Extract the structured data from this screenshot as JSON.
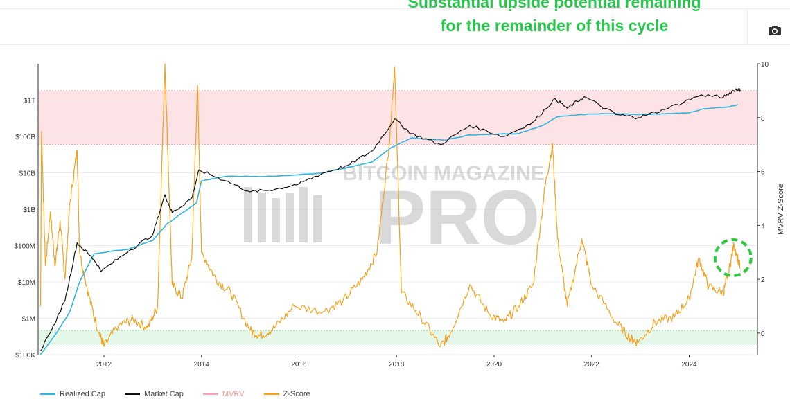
{
  "headline": {
    "line1": "Substantial upside potential remaining",
    "line2": "for the remainder of this cycle"
  },
  "toolbar": {
    "camera_icon": "camera-icon"
  },
  "colors": {
    "headline": "#26c74a",
    "realized_cap": "#2fb4e0",
    "market_cap": "#111111",
    "mvrv": "#f3a3ac",
    "zscore": "#f5a01a",
    "red_zone": "#fde3e5",
    "green_zone": "#e4f7e8",
    "annotation": "#2ec73e"
  },
  "watermark": {
    "line1": "BITCOIN MAGAZINE",
    "line2": "PRO"
  },
  "chart_data": {
    "type": "line",
    "x_range": [
      2010.65,
      2025.4
    ],
    "x_ticks": [
      "2012",
      "2014",
      "2016",
      "2018",
      "2020",
      "2022",
      "2024"
    ],
    "left_axis": {
      "scale": "log",
      "range": [
        100000,
        10000000000000
      ],
      "tick_values": [
        100000,
        1000000,
        10000000,
        100000000,
        1000000000,
        10000000000,
        100000000000,
        1000000000000
      ],
      "tick_labels": [
        "$100K",
        "$1M",
        "$10M",
        "$100M",
        "$1B",
        "$10B",
        "$100B",
        "$1T"
      ]
    },
    "right_axis": {
      "label": "MVRV Z-Score",
      "range": [
        -0.8,
        10
      ],
      "tick_values": [
        0,
        2,
        4,
        6,
        8,
        10
      ],
      "tick_labels": [
        "0",
        "2",
        "4",
        "6",
        "8",
        "10"
      ]
    },
    "bands": [
      {
        "name": "red-zone",
        "axis": "right",
        "from": 7,
        "to": 9
      },
      {
        "name": "green-zone",
        "axis": "right",
        "from": -0.4,
        "to": 0.1
      }
    ],
    "series": [
      {
        "name": "Realized Cap",
        "axis": "left",
        "points": [
          [
            2010.7,
            100000
          ],
          [
            2011.0,
            350000
          ],
          [
            2011.3,
            1500000
          ],
          [
            2011.5,
            10000000
          ],
          [
            2011.8,
            60000000
          ],
          [
            2012.5,
            80000000
          ],
          [
            2013.0,
            140000000
          ],
          [
            2013.3,
            400000000
          ],
          [
            2013.9,
            1500000000
          ],
          [
            2014.0,
            6000000000
          ],
          [
            2014.5,
            8000000000
          ],
          [
            2015.5,
            8000000000
          ],
          [
            2016.5,
            10000000000
          ],
          [
            2017.5,
            20000000000
          ],
          [
            2017.9,
            50000000000
          ],
          [
            2018.3,
            90000000000
          ],
          [
            2019.0,
            80000000000
          ],
          [
            2019.5,
            110000000000
          ],
          [
            2020.5,
            120000000000
          ],
          [
            2021.0,
            200000000000
          ],
          [
            2021.3,
            350000000000
          ],
          [
            2022.0,
            420000000000
          ],
          [
            2022.5,
            420000000000
          ],
          [
            2023.0,
            400000000000
          ],
          [
            2023.5,
            420000000000
          ],
          [
            2024.0,
            450000000000
          ],
          [
            2024.3,
            580000000000
          ],
          [
            2024.8,
            650000000000
          ],
          [
            2025.0,
            750000000000
          ]
        ]
      },
      {
        "name": "Market Cap",
        "axis": "left",
        "points": [
          [
            2010.7,
            130000
          ],
          [
            2010.9,
            400000
          ],
          [
            2011.2,
            3000000
          ],
          [
            2011.45,
            120000000
          ],
          [
            2011.8,
            40000000
          ],
          [
            2011.95,
            20000000
          ],
          [
            2012.5,
            70000000
          ],
          [
            2013.0,
            200000000
          ],
          [
            2013.25,
            2500000000
          ],
          [
            2013.4,
            800000000
          ],
          [
            2013.8,
            2000000000
          ],
          [
            2013.95,
            12000000000
          ],
          [
            2014.5,
            6000000000
          ],
          [
            2015.0,
            3000000000
          ],
          [
            2015.5,
            3500000000
          ],
          [
            2016.0,
            5000000000
          ],
          [
            2016.5,
            10000000000
          ],
          [
            2017.0,
            16000000000
          ],
          [
            2017.5,
            40000000000
          ],
          [
            2017.96,
            300000000000
          ],
          [
            2018.3,
            120000000000
          ],
          [
            2018.9,
            60000000000
          ],
          [
            2019.5,
            200000000000
          ],
          [
            2020.2,
            100000000000
          ],
          [
            2020.8,
            250000000000
          ],
          [
            2021.25,
            1100000000000
          ],
          [
            2021.5,
            600000000000
          ],
          [
            2021.85,
            1250000000000
          ],
          [
            2022.5,
            400000000000
          ],
          [
            2022.95,
            330000000000
          ],
          [
            2023.5,
            550000000000
          ],
          [
            2024.25,
            1400000000000
          ],
          [
            2024.7,
            1200000000000
          ],
          [
            2024.95,
            2000000000000
          ],
          [
            2025.05,
            1900000000000
          ]
        ]
      },
      {
        "name": "MVRV",
        "axis": "left",
        "points": []
      },
      {
        "name": "Z-Score",
        "axis": "right",
        "points": [
          [
            2010.7,
            1.0
          ],
          [
            2010.72,
            7.5
          ],
          [
            2010.8,
            2.5
          ],
          [
            2010.9,
            4.5
          ],
          [
            2011.0,
            2.5
          ],
          [
            2011.1,
            4.2
          ],
          [
            2011.2,
            2.0
          ],
          [
            2011.3,
            4.8
          ],
          [
            2011.45,
            6.8
          ],
          [
            2011.5,
            3.0
          ],
          [
            2011.7,
            1.3
          ],
          [
            2011.9,
            0.0
          ],
          [
            2012.0,
            -0.5
          ],
          [
            2012.3,
            0.3
          ],
          [
            2012.6,
            0.5
          ],
          [
            2012.9,
            0.2
          ],
          [
            2013.1,
            1.0
          ],
          [
            2013.25,
            10.0
          ],
          [
            2013.4,
            1.8
          ],
          [
            2013.6,
            1.3
          ],
          [
            2013.8,
            2.8
          ],
          [
            2013.92,
            9.2
          ],
          [
            2014.0,
            3.0
          ],
          [
            2014.3,
            2.0
          ],
          [
            2014.6,
            1.5
          ],
          [
            2015.0,
            0.1
          ],
          [
            2015.2,
            -0.1
          ],
          [
            2015.5,
            0.2
          ],
          [
            2015.9,
            1.0
          ],
          [
            2016.5,
            0.8
          ],
          [
            2016.9,
            1.2
          ],
          [
            2017.3,
            2.0
          ],
          [
            2017.6,
            3.0
          ],
          [
            2017.85,
            7.0
          ],
          [
            2017.96,
            9.9
          ],
          [
            2018.1,
            1.5
          ],
          [
            2018.5,
            0.6
          ],
          [
            2018.9,
            -0.5
          ],
          [
            2019.1,
            0.0
          ],
          [
            2019.5,
            1.8
          ],
          [
            2019.9,
            0.7
          ],
          [
            2020.2,
            0.4
          ],
          [
            2020.5,
            1.0
          ],
          [
            2020.8,
            1.8
          ],
          [
            2021.05,
            5.5
          ],
          [
            2021.2,
            7.0
          ],
          [
            2021.3,
            3.5
          ],
          [
            2021.5,
            1.0
          ],
          [
            2021.8,
            3.5
          ],
          [
            2022.0,
            1.8
          ],
          [
            2022.5,
            0.4
          ],
          [
            2022.8,
            -0.2
          ],
          [
            2022.95,
            -0.35
          ],
          [
            2023.3,
            0.4
          ],
          [
            2023.7,
            0.6
          ],
          [
            2024.0,
            1.3
          ],
          [
            2024.2,
            2.8
          ],
          [
            2024.4,
            1.7
          ],
          [
            2024.7,
            1.5
          ],
          [
            2024.8,
            2.2
          ],
          [
            2024.92,
            3.3
          ],
          [
            2025.05,
            2.4
          ]
        ]
      }
    ],
    "annotation": {
      "shape": "dashed-circle",
      "x": 2024.9,
      "y_right": 2.8
    },
    "legend": [
      "Realized Cap",
      "Market Cap",
      "MVRV",
      "Z-Score"
    ],
    "legend_placement": "bottom-left"
  }
}
